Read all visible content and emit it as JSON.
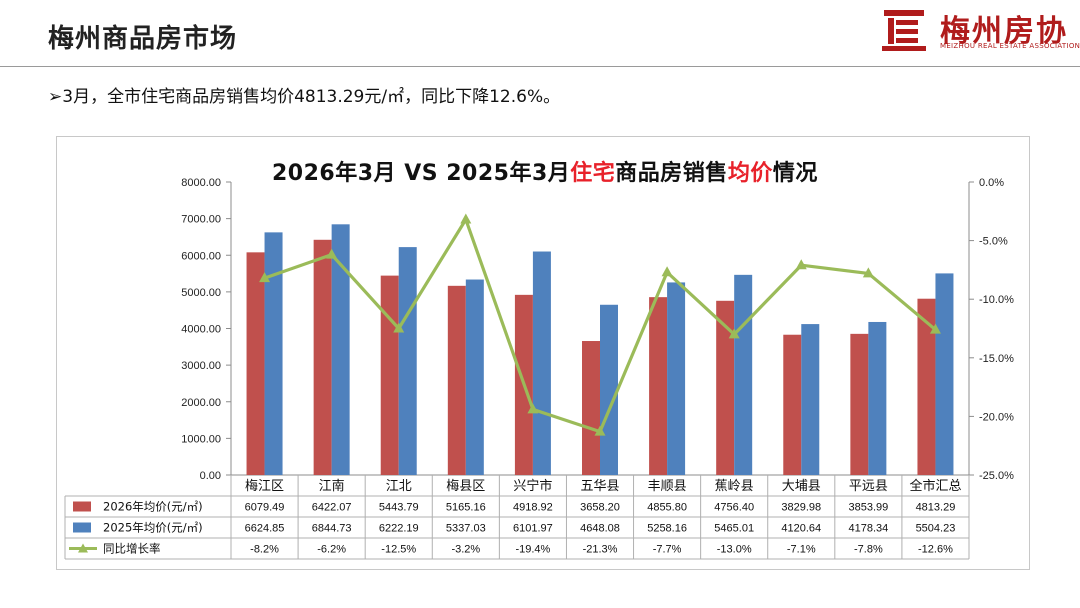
{
  "header": {
    "title": "梅州商品房市场",
    "logo_text": "梅州房协",
    "logo_sub": "MEIZHOU REAL ESTATE ASSOCIATION"
  },
  "summary": {
    "bullet": "➢",
    "text": "3月，全市住宅商品房销售均价4813.29元/㎡，同比下降12.6%。"
  },
  "chart_title": {
    "part1": "2026年3月 VS 2025年3月",
    "part2": "住宅",
    "part3": "商品房销售",
    "part4": "均价",
    "part5": "情况"
  },
  "colors": {
    "series_2026": "#c0504d",
    "series_2025": "#4f81bd",
    "growth": "#9bbb59",
    "accent_red": "#e8212a"
  },
  "chart_data": {
    "type": "bar",
    "categories": [
      "梅江区",
      "江南",
      "江北",
      "梅县区",
      "兴宁市",
      "五华县",
      "丰顺县",
      "蕉岭县",
      "大埔县",
      "平远县",
      "全市汇总"
    ],
    "series": [
      {
        "name": "2026年均价(元/㎡)",
        "kind": "bar",
        "axis": "left",
        "values": [
          6079.49,
          6422.07,
          5443.79,
          5165.16,
          4918.92,
          3658.2,
          4855.8,
          4756.4,
          3829.98,
          3853.99,
          4813.29
        ],
        "labels": [
          "6079.49",
          "6422.07",
          "5443.79",
          "5165.16",
          "4918.92",
          "3658.20",
          "4855.80",
          "4756.40",
          "3829.98",
          "3853.99",
          "4813.29"
        ]
      },
      {
        "name": "2025年均价(元/㎡)",
        "kind": "bar",
        "axis": "left",
        "values": [
          6624.85,
          6844.73,
          6222.19,
          5337.03,
          6101.97,
          4648.08,
          5258.16,
          5465.01,
          4120.64,
          4178.34,
          5504.23
        ],
        "labels": [
          "6624.85",
          "6844.73",
          "6222.19",
          "5337.03",
          "6101.97",
          "4648.08",
          "5258.16",
          "5465.01",
          "4120.64",
          "4178.34",
          "5504.23"
        ]
      },
      {
        "name": "同比增长率",
        "kind": "line",
        "axis": "right",
        "values": [
          -8.2,
          -6.2,
          -12.5,
          -3.2,
          -19.4,
          -21.3,
          -7.7,
          -13.0,
          -7.1,
          -7.8,
          -12.6
        ],
        "labels": [
          "-8.2%",
          "-6.2%",
          "-12.5%",
          "-3.2%",
          "-19.4%",
          "-21.3%",
          "-7.7%",
          "-13.0%",
          "-7.1%",
          "-7.8%",
          "-12.6%"
        ]
      }
    ],
    "y_left": {
      "min": 0,
      "max": 8000,
      "ticks": [
        "0.00",
        "1000.00",
        "2000.00",
        "3000.00",
        "4000.00",
        "5000.00",
        "6000.00",
        "7000.00",
        "8000.00"
      ]
    },
    "y_right": {
      "min": -25,
      "max": 0,
      "ticks": [
        "-25.0%",
        "-20.0%",
        "-15.0%",
        "-10.0%",
        "-5.0%",
        "0.0%"
      ]
    },
    "gridlines": false,
    "legend": "bottom-table"
  }
}
